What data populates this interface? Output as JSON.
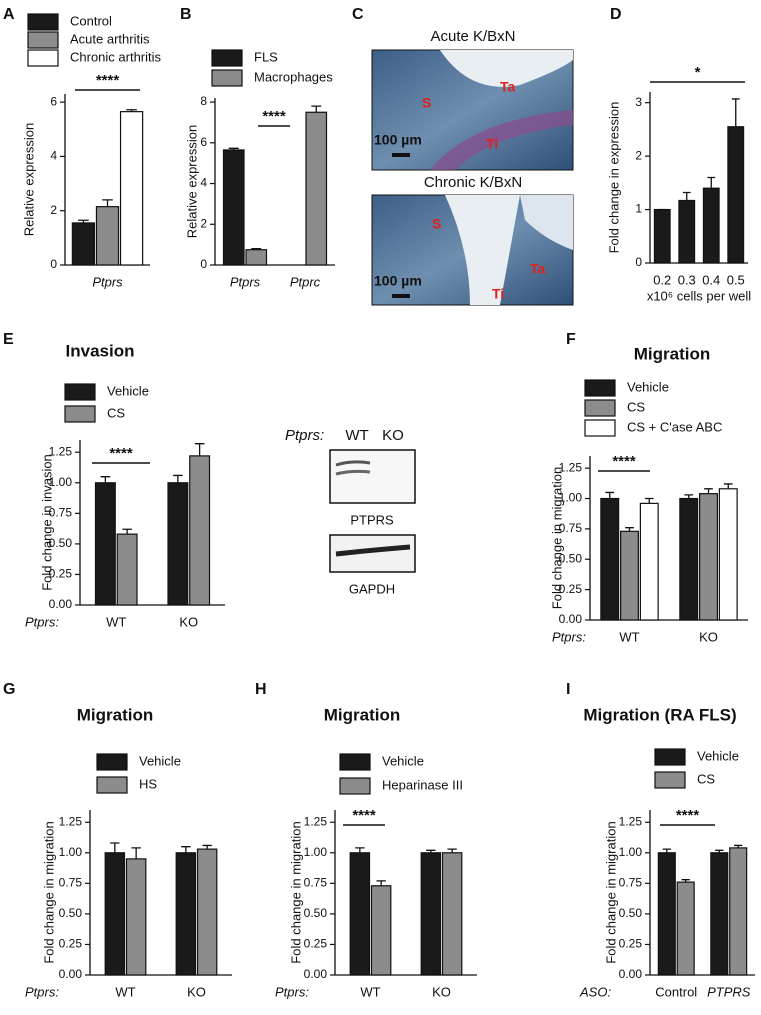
{
  "chart_data": [
    {
      "type": "bar",
      "panel": "A",
      "ylabel": "Relative expression",
      "categories": [
        "Ptprs"
      ],
      "series": [
        {
          "name": "Control",
          "color": "#1a1a1a",
          "values": [
            1.55
          ],
          "errors": [
            0.1
          ]
        },
        {
          "name": "Acute arthritis",
          "color": "#8c8c8c",
          "values": [
            2.15
          ],
          "errors": [
            0.25
          ]
        },
        {
          "name": "Chronic arthritis",
          "color": "#ffffff",
          "values": [
            5.65
          ],
          "errors": [
            0.07
          ]
        }
      ],
      "ylim": [
        0,
        6.3
      ],
      "yticks": [
        0,
        2,
        4,
        6
      ],
      "significance": "****"
    },
    {
      "type": "bar",
      "panel": "B",
      "ylabel": "Relative expression",
      "categories": [
        "Ptprs",
        "Ptprc"
      ],
      "series": [
        {
          "name": "FLS",
          "color": "#1a1a1a",
          "values": [
            5.65,
            null
          ],
          "errors": [
            0.08,
            null
          ]
        },
        {
          "name": "Macrophages",
          "color": "#8c8c8c",
          "values": [
            0.75,
            7.5
          ],
          "errors": [
            0.05,
            0.3
          ]
        }
      ],
      "ylim": [
        0,
        8.2
      ],
      "yticks": [
        0,
        2,
        4,
        6,
        8
      ],
      "significance": "****"
    },
    {
      "type": "bar",
      "panel": "D",
      "ylabel": "Fold change in expression",
      "xlabel": "x10⁶ cells per well",
      "categories": [
        "0.2",
        "0.3",
        "0.4",
        "0.5"
      ],
      "color": "#1a1a1a",
      "values": [
        1.0,
        1.17,
        1.4,
        2.55
      ],
      "errors": [
        0,
        0.15,
        0.2,
        0.52
      ],
      "ylim": [
        0,
        3.2
      ],
      "yticks": [
        0,
        1,
        2,
        3
      ],
      "significance": "*"
    },
    {
      "type": "bar",
      "panel": "E",
      "title": "Invasion",
      "ylabel": "Fold change in invasion",
      "x_prefix": "Ptprs:",
      "categories": [
        "WT",
        "KO"
      ],
      "series": [
        {
          "name": "Vehicle",
          "color": "#1a1a1a",
          "values": [
            1.0,
            1.0
          ],
          "errors": [
            0.05,
            0.06
          ]
        },
        {
          "name": "CS",
          "color": "#8c8c8c",
          "values": [
            0.58,
            1.22
          ],
          "errors": [
            0.04,
            0.1
          ]
        }
      ],
      "ylim": [
        0,
        1.35
      ],
      "yticks": [
        {
          "value": 0,
          "label": "0.00"
        },
        {
          "value": 0.25,
          "label": "0.25"
        },
        {
          "value": 0.5,
          "label": "0.50"
        },
        {
          "value": 0.75,
          "label": "0.75"
        },
        {
          "value": 1,
          "label": "1.00"
        },
        {
          "value": 1.25,
          "label": "1.25"
        }
      ],
      "significance": "****"
    },
    {
      "type": "bar",
      "panel": "F",
      "title": "Migration",
      "ylabel": "Fold change in migration",
      "x_prefix": "Ptprs:",
      "categories": [
        "WT",
        "KO"
      ],
      "series": [
        {
          "name": "Vehicle",
          "color": "#1a1a1a",
          "values": [
            1.0,
            1.0
          ],
          "errors": [
            0.05,
            0.03
          ]
        },
        {
          "name": "CS",
          "color": "#8c8c8c",
          "values": [
            0.73,
            1.04
          ],
          "errors": [
            0.03,
            0.04
          ]
        },
        {
          "name": "CS + C'ase ABC",
          "color": "#ffffff",
          "values": [
            0.96,
            1.08
          ],
          "errors": [
            0.04,
            0.04
          ]
        }
      ],
      "ylim": [
        0,
        1.35
      ],
      "yticks": [
        {
          "value": 0,
          "label": "0.00"
        },
        {
          "value": 0.25,
          "label": "0.25"
        },
        {
          "value": 0.5,
          "label": "0.50"
        },
        {
          "value": 0.75,
          "label": "0.75"
        },
        {
          "value": 1,
          "label": "1.00"
        },
        {
          "value": 1.25,
          "label": "1.25"
        }
      ],
      "significance": "****"
    },
    {
      "type": "bar",
      "panel": "G",
      "title": "Migration",
      "ylabel": "Fold change in migration",
      "x_prefix": "Ptprs:",
      "categories": [
        "WT",
        "KO"
      ],
      "series": [
        {
          "name": "Vehicle",
          "color": "#1a1a1a",
          "values": [
            1.0,
            1.0
          ],
          "errors": [
            0.08,
            0.05
          ]
        },
        {
          "name": "HS",
          "color": "#8c8c8c",
          "values": [
            0.95,
            1.03
          ],
          "errors": [
            0.09,
            0.03
          ]
        }
      ],
      "ylim": [
        0,
        1.35
      ],
      "yticks": [
        {
          "value": 0,
          "label": "0.00"
        },
        {
          "value": 0.25,
          "label": "0.25"
        },
        {
          "value": 0.5,
          "label": "0.50"
        },
        {
          "value": 0.75,
          "label": "0.75"
        },
        {
          "value": 1,
          "label": "1.00"
        },
        {
          "value": 1.25,
          "label": "1.25"
        }
      ]
    },
    {
      "type": "bar",
      "panel": "H",
      "title": "Migration",
      "ylabel": "Fold change in migration",
      "x_prefix": "Ptprs:",
      "categories": [
        "WT",
        "KO"
      ],
      "series": [
        {
          "name": "Vehicle",
          "color": "#1a1a1a",
          "values": [
            1.0,
            1.0
          ],
          "errors": [
            0.04,
            0.02
          ]
        },
        {
          "name": "Heparinase III",
          "color": "#8c8c8c",
          "values": [
            0.73,
            1.0
          ],
          "errors": [
            0.04,
            0.03
          ]
        }
      ],
      "ylim": [
        0,
        1.35
      ],
      "yticks": [
        {
          "value": 0,
          "label": "0.00"
        },
        {
          "value": 0.25,
          "label": "0.25"
        },
        {
          "value": 0.5,
          "label": "0.50"
        },
        {
          "value": 0.75,
          "label": "0.75"
        },
        {
          "value": 1,
          "label": "1.00"
        },
        {
          "value": 1.25,
          "label": "1.25"
        }
      ],
      "significance": "****"
    },
    {
      "type": "bar",
      "panel": "I",
      "title": "Migration (RA FLS)",
      "ylabel": "Fold change in migration",
      "x_prefix": "ASO:",
      "categories": [
        "Control",
        "PTPRS"
      ],
      "series": [
        {
          "name": "Vehicle",
          "color": "#1a1a1a",
          "values": [
            1.0,
            1.0
          ],
          "errors": [
            0.03,
            0.02
          ]
        },
        {
          "name": "CS",
          "color": "#8c8c8c",
          "values": [
            0.76,
            1.04
          ],
          "errors": [
            0.02,
            0.02
          ]
        }
      ],
      "ylim": [
        0,
        1.35
      ],
      "yticks": [
        {
          "value": 0,
          "label": "0.00"
        },
        {
          "value": 0.25,
          "label": "0.25"
        },
        {
          "value": 0.5,
          "label": "0.50"
        },
        {
          "value": 0.75,
          "label": "0.75"
        },
        {
          "value": 1,
          "label": "1.00"
        },
        {
          "value": 1.25,
          "label": "1.25"
        }
      ],
      "significance": "****"
    }
  ],
  "histology": {
    "panel": "C",
    "images": [
      {
        "title": "Acute K/BxN",
        "scale_bar": "100 µm",
        "labels": [
          "S",
          "Ta",
          "Ti"
        ]
      },
      {
        "title": "Chronic K/BxN",
        "scale_bar": "100 µm",
        "labels": [
          "S",
          "Ta",
          "Ti"
        ]
      }
    ]
  },
  "blot": {
    "prefix": "Ptprs:",
    "lanes": [
      "WT",
      "KO"
    ],
    "bands": [
      "PTPRS",
      "GAPDH"
    ]
  }
}
